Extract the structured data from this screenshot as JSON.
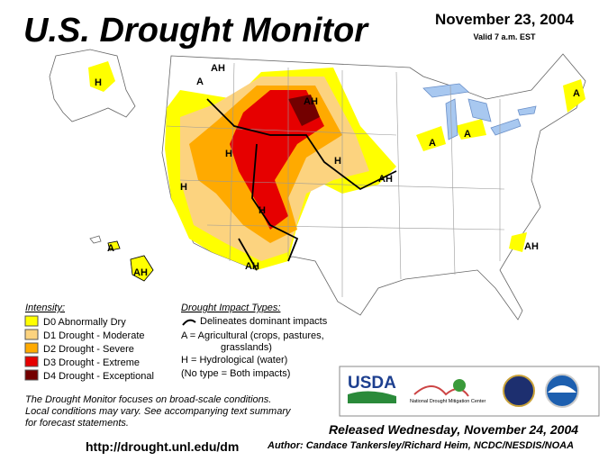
{
  "header": {
    "title": "U.S. Drought Monitor",
    "date": "November 23, 2004",
    "valid": "Valid 7 a.m. EST"
  },
  "map": {
    "labels": [
      "A",
      "AH",
      "H",
      "AH",
      "H",
      "H",
      "AH",
      "H",
      "H",
      "AH",
      "A",
      "AH",
      "A",
      "A",
      "A",
      "AH"
    ]
  },
  "legend": {
    "intensity_title": "Intensity:",
    "levels": [
      {
        "label": "D0 Abnormally Dry",
        "color": "#ffff00"
      },
      {
        "label": "D1 Drought - Moderate",
        "color": "#fcd37f"
      },
      {
        "label": "D2 Drought - Severe",
        "color": "#ffaa00"
      },
      {
        "label": "D3 Drought - Extreme",
        "color": "#e60000"
      },
      {
        "label": "D4 Drought - Exceptional",
        "color": "#730000"
      }
    ],
    "impact_title": "Drought Impact Types:",
    "impact_items": [
      "Delineates dominant impacts",
      "A = Agricultural (crops, pastures,",
      "grasslands)",
      "H = Hydrological (water)",
      "(No type = Both impacts)"
    ]
  },
  "footnote": [
    "The Drought Monitor focuses on broad-scale conditions.",
    "Local conditions may vary.  See accompanying text summary",
    "for forecast statements."
  ],
  "url": "http://drought.unl.edu/dm",
  "logos": {
    "usda": "USDA",
    "ndmc": "National Drought Mitigation Center"
  },
  "released": "Released Wednesday, November 24, 2004",
  "author": "Author: Candace Tankersley/Richard Heim, NCDC/NESDIS/NOAA"
}
